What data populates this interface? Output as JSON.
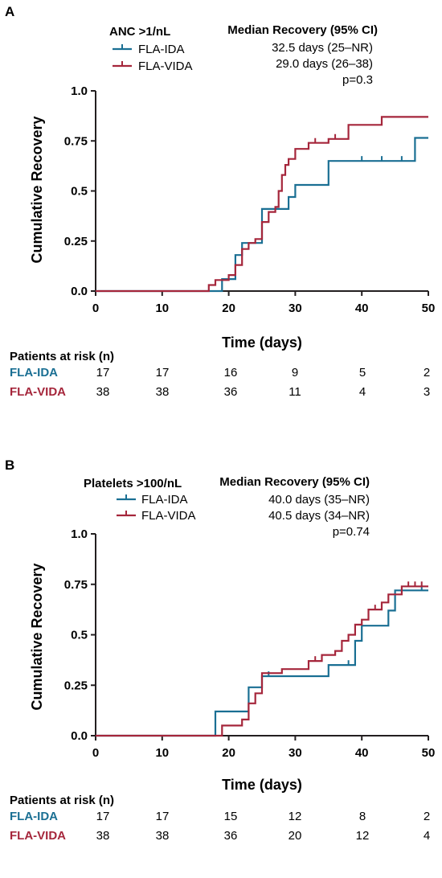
{
  "colors": {
    "ida": "#1a6f93",
    "vida": "#a5263b",
    "axis": "#231f20"
  },
  "chart_data": [
    {
      "type": "line",
      "panel_label": "A",
      "legend_title": "ANC >1/nL",
      "stats_header": "Median Recovery (95% CI)",
      "stats": [
        "32.5 days (25–NR)",
        "29.0 days (26–38)",
        "p=0.3"
      ],
      "xlabel": "Time (days)",
      "ylabel": "Cumulative Recovery",
      "xlim": [
        0,
        50
      ],
      "ylim": [
        0,
        1
      ],
      "xticks": [
        "0",
        "10",
        "20",
        "30",
        "40",
        "50"
      ],
      "yticks": [
        "0.0",
        "0.25",
        "0.5",
        "0.75",
        "1.0"
      ],
      "series": [
        {
          "name": "FLA-IDA",
          "color": "#1a6f93",
          "steps": [
            [
              0,
              0
            ],
            [
              19,
              0
            ],
            [
              19,
              0.06
            ],
            [
              21,
              0.06
            ],
            [
              21,
              0.18
            ],
            [
              22,
              0.18
            ],
            [
              22,
              0.24
            ],
            [
              25,
              0.24
            ],
            [
              25,
              0.41
            ],
            [
              26,
              0.41
            ],
            [
              26,
              0.41
            ],
            [
              29,
              0.41
            ],
            [
              29,
              0.47
            ],
            [
              30,
              0.47
            ],
            [
              30,
              0.53
            ],
            [
              35,
              0.53
            ],
            [
              35,
              0.65
            ],
            [
              48,
              0.65
            ],
            [
              48,
              0.765
            ],
            [
              50,
              0.765
            ]
          ],
          "censors": [
            [
              40,
              0.65
            ],
            [
              43,
              0.65
            ],
            [
              46,
              0.65
            ]
          ]
        },
        {
          "name": "FLA-VIDA",
          "color": "#a5263b",
          "steps": [
            [
              0,
              0
            ],
            [
              17,
              0
            ],
            [
              17,
              0.03
            ],
            [
              18,
              0.03
            ],
            [
              18,
              0.055
            ],
            [
              20,
              0.055
            ],
            [
              20,
              0.08
            ],
            [
              21,
              0.08
            ],
            [
              21,
              0.13
            ],
            [
              22,
              0.13
            ],
            [
              22,
              0.21
            ],
            [
              23,
              0.21
            ],
            [
              23,
              0.24
            ],
            [
              24,
              0.24
            ],
            [
              24,
              0.26
            ],
            [
              25,
              0.26
            ],
            [
              25,
              0.345
            ],
            [
              26,
              0.345
            ],
            [
              26,
              0.395
            ],
            [
              27,
              0.395
            ],
            [
              27,
              0.42
            ],
            [
              27.5,
              0.42
            ],
            [
              27.5,
              0.5
            ],
            [
              28,
              0.5
            ],
            [
              28,
              0.58
            ],
            [
              28.5,
              0.58
            ],
            [
              28.5,
              0.63
            ],
            [
              29,
              0.63
            ],
            [
              29,
              0.66
            ],
            [
              30,
              0.66
            ],
            [
              30,
              0.71
            ],
            [
              32,
              0.71
            ],
            [
              32,
              0.74
            ],
            [
              35,
              0.74
            ],
            [
              35,
              0.76
            ],
            [
              38,
              0.76
            ],
            [
              38,
              0.83
            ],
            [
              43,
              0.83
            ],
            [
              43,
              0.87
            ],
            [
              50,
              0.87
            ]
          ],
          "censors": [
            [
              33,
              0.74
            ],
            [
              36,
              0.76
            ]
          ]
        }
      ],
      "risk_header": "Patients at risk (n)",
      "risk_rows": [
        {
          "label": "FLA-IDA",
          "values": [
            "17",
            "17",
            "16",
            "9",
            "5",
            "2"
          ]
        },
        {
          "label": "FLA-VIDA",
          "values": [
            "38",
            "38",
            "36",
            "11",
            "4",
            "3"
          ]
        }
      ]
    },
    {
      "type": "line",
      "panel_label": "B",
      "legend_title": "Platelets >100/nL",
      "stats_header": "Median Recovery (95% CI)",
      "stats": [
        "40.0 days (35–NR)",
        "40.5 days (34–NR)",
        "p=0.74"
      ],
      "xlabel": "Time (days)",
      "ylabel": "Cumulative Recovery",
      "xlim": [
        0,
        50
      ],
      "ylim": [
        0,
        1
      ],
      "xticks": [
        "0",
        "10",
        "20",
        "30",
        "40",
        "50"
      ],
      "yticks": [
        "0.0",
        "0.25",
        "0.5",
        "0.75",
        "1.0"
      ],
      "series": [
        {
          "name": "FLA-IDA",
          "color": "#1a6f93",
          "steps": [
            [
              0,
              0
            ],
            [
              18,
              0
            ],
            [
              18,
              0.12
            ],
            [
              23,
              0.12
            ],
            [
              23,
              0.24
            ],
            [
              25,
              0.24
            ],
            [
              25,
              0.295
            ],
            [
              35,
              0.295
            ],
            [
              35,
              0.35
            ],
            [
              39,
              0.35
            ],
            [
              39,
              0.47
            ],
            [
              40,
              0.47
            ],
            [
              40,
              0.545
            ],
            [
              44,
              0.545
            ],
            [
              44,
              0.62
            ],
            [
              45,
              0.62
            ],
            [
              45,
              0.72
            ],
            [
              50,
              0.72
            ]
          ],
          "censors": [
            [
              26,
              0.295
            ],
            [
              38,
              0.35
            ],
            [
              49,
              0.72
            ]
          ]
        },
        {
          "name": "FLA-VIDA",
          "color": "#a5263b",
          "steps": [
            [
              0,
              0
            ],
            [
              19,
              0
            ],
            [
              19,
              0.05
            ],
            [
              22,
              0.05
            ],
            [
              22,
              0.08
            ],
            [
              23,
              0.08
            ],
            [
              23,
              0.16
            ],
            [
              24,
              0.16
            ],
            [
              24,
              0.21
            ],
            [
              25,
              0.21
            ],
            [
              25,
              0.31
            ],
            [
              26,
              0.31
            ],
            [
              26,
              0.31
            ],
            [
              28,
              0.31
            ],
            [
              28,
              0.33
            ],
            [
              32,
              0.33
            ],
            [
              32,
              0.37
            ],
            [
              34,
              0.37
            ],
            [
              34,
              0.4
            ],
            [
              36,
              0.4
            ],
            [
              36,
              0.42
            ],
            [
              37,
              0.42
            ],
            [
              37,
              0.47
            ],
            [
              38,
              0.47
            ],
            [
              38,
              0.5
            ],
            [
              39,
              0.5
            ],
            [
              39,
              0.55
            ],
            [
              40,
              0.55
            ],
            [
              40,
              0.575
            ],
            [
              41,
              0.575
            ],
            [
              41,
              0.625
            ],
            [
              43,
              0.625
            ],
            [
              43,
              0.66
            ],
            [
              44,
              0.66
            ],
            [
              44,
              0.7
            ],
            [
              46,
              0.7
            ],
            [
              46,
              0.74
            ],
            [
              50,
              0.74
            ]
          ],
          "censors": [
            [
              33,
              0.37
            ],
            [
              42,
              0.625
            ],
            [
              47,
              0.74
            ],
            [
              48,
              0.74
            ],
            [
              49,
              0.74
            ]
          ]
        }
      ],
      "risk_header": "Patients at risk (n)",
      "risk_rows": [
        {
          "label": "FLA-IDA",
          "values": [
            "17",
            "17",
            "15",
            "12",
            "8",
            "2"
          ]
        },
        {
          "label": "FLA-VIDA",
          "values": [
            "38",
            "38",
            "36",
            "20",
            "12",
            "4"
          ]
        }
      ]
    }
  ]
}
